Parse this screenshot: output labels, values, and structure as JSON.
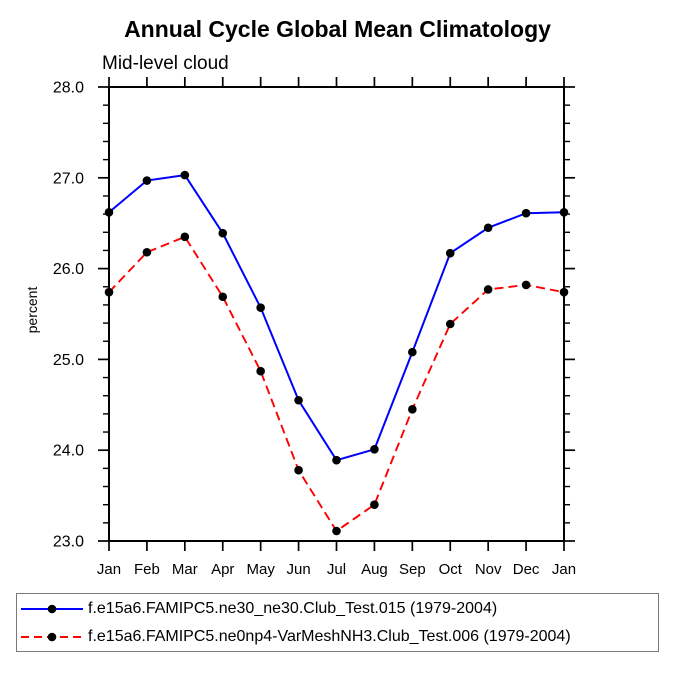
{
  "window": {
    "background": "#ffffff",
    "axis_color": "#000000"
  },
  "chart_data": {
    "type": "line",
    "title": "Annual Cycle Global Mean Climatology",
    "subtitle": "Mid-level cloud",
    "xlabel": "",
    "ylabel": "percent",
    "categories": [
      "Jan",
      "Feb",
      "Mar",
      "Apr",
      "May",
      "Jun",
      "Jul",
      "Aug",
      "Sep",
      "Oct",
      "Nov",
      "Dec",
      "Jan"
    ],
    "ylim": [
      23.0,
      28.0
    ],
    "ytick_labels": [
      "23.0",
      "24.0",
      "25.0",
      "26.0",
      "27.0",
      "28.0"
    ],
    "ytick_values": [
      23.0,
      24.0,
      25.0,
      26.0,
      27.0,
      28.0
    ],
    "ytick_minor_step": 0.2,
    "grid": false,
    "legend_position": "bottom",
    "series": [
      {
        "name": "f.e15a6.FAMIPC5.ne30_ne30.Club_Test.015 (1979-2004)",
        "color": "#0000ff",
        "line_style": "solid",
        "marker": "circle",
        "marker_color": "#000000",
        "values": [
          26.62,
          26.97,
          27.03,
          26.39,
          25.57,
          24.55,
          23.89,
          24.01,
          25.08,
          26.17,
          26.45,
          26.61,
          26.62
        ]
      },
      {
        "name": "f.e15a6.FAMIPC5.ne0np4-VarMeshNH3.Club_Test.006 (1979-2004)",
        "color": "#ff0000",
        "line_style": "dashed",
        "marker": "circle",
        "marker_color": "#000000",
        "values": [
          25.74,
          26.18,
          26.35,
          25.69,
          24.87,
          23.78,
          23.11,
          23.4,
          24.45,
          25.39,
          25.77,
          25.82,
          25.74
        ]
      }
    ]
  }
}
